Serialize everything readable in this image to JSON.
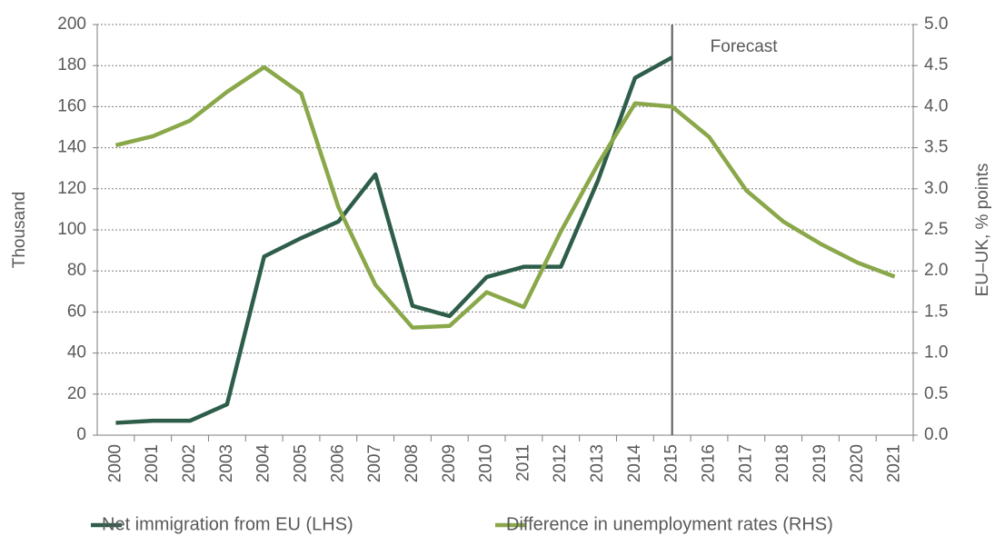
{
  "chart_data": {
    "type": "line",
    "y_label": "Thousand",
    "y2_label": "EU–UK, % points",
    "categories": [
      "2000",
      "2001",
      "2002",
      "2003",
      "2004",
      "2005",
      "2006",
      "2007",
      "2008",
      "2009",
      "2010",
      "2011",
      "2012",
      "2013",
      "2014",
      "2015",
      "2016",
      "2017",
      "2018",
      "2019",
      "2020",
      "2021"
    ],
    "series": [
      {
        "name": "Net immigration from EU (LHS)",
        "color": "#2e5e4a",
        "axis": "y",
        "values": [
          6,
          7,
          7,
          15,
          87,
          96,
          104,
          127,
          63,
          58,
          77,
          82,
          82,
          124,
          174,
          184,
          null,
          null,
          null,
          null,
          null,
          null
        ]
      },
      {
        "name": "Difference in unemployment rates (RHS)",
        "color": "#8aa84a",
        "axis": "y2",
        "values": [
          3.53,
          3.64,
          3.83,
          4.18,
          4.48,
          4.16,
          2.78,
          1.83,
          1.31,
          1.33,
          1.74,
          1.56,
          2.48,
          3.3,
          4.04,
          4.0,
          3.63,
          2.98,
          2.6,
          2.33,
          2.1,
          1.93
        ]
      }
    ],
    "ylim": [
      0,
      200
    ],
    "yticks": [
      0,
      20,
      40,
      60,
      80,
      100,
      120,
      140,
      160,
      180,
      200
    ],
    "y2lim": [
      0,
      5
    ],
    "y2ticks": [
      {
        "value": 0,
        "label": "0.0"
      },
      {
        "value": 0.5,
        "label": "0.5"
      },
      {
        "value": 1,
        "label": "1.0"
      },
      {
        "value": 1.5,
        "label": "1.5"
      },
      {
        "value": 2,
        "label": "2.0"
      },
      {
        "value": 2.5,
        "label": "2.5"
      },
      {
        "value": 3,
        "label": "3.0"
      },
      {
        "value": 3.5,
        "label": "3.5"
      },
      {
        "value": 4,
        "label": "4.0"
      },
      {
        "value": 4.5,
        "label": "4.5"
      },
      {
        "value": 5,
        "label": "5.0"
      }
    ],
    "grid": true,
    "annotation": {
      "text": "Forecast",
      "x": "2015"
    },
    "legend": "bottom"
  }
}
